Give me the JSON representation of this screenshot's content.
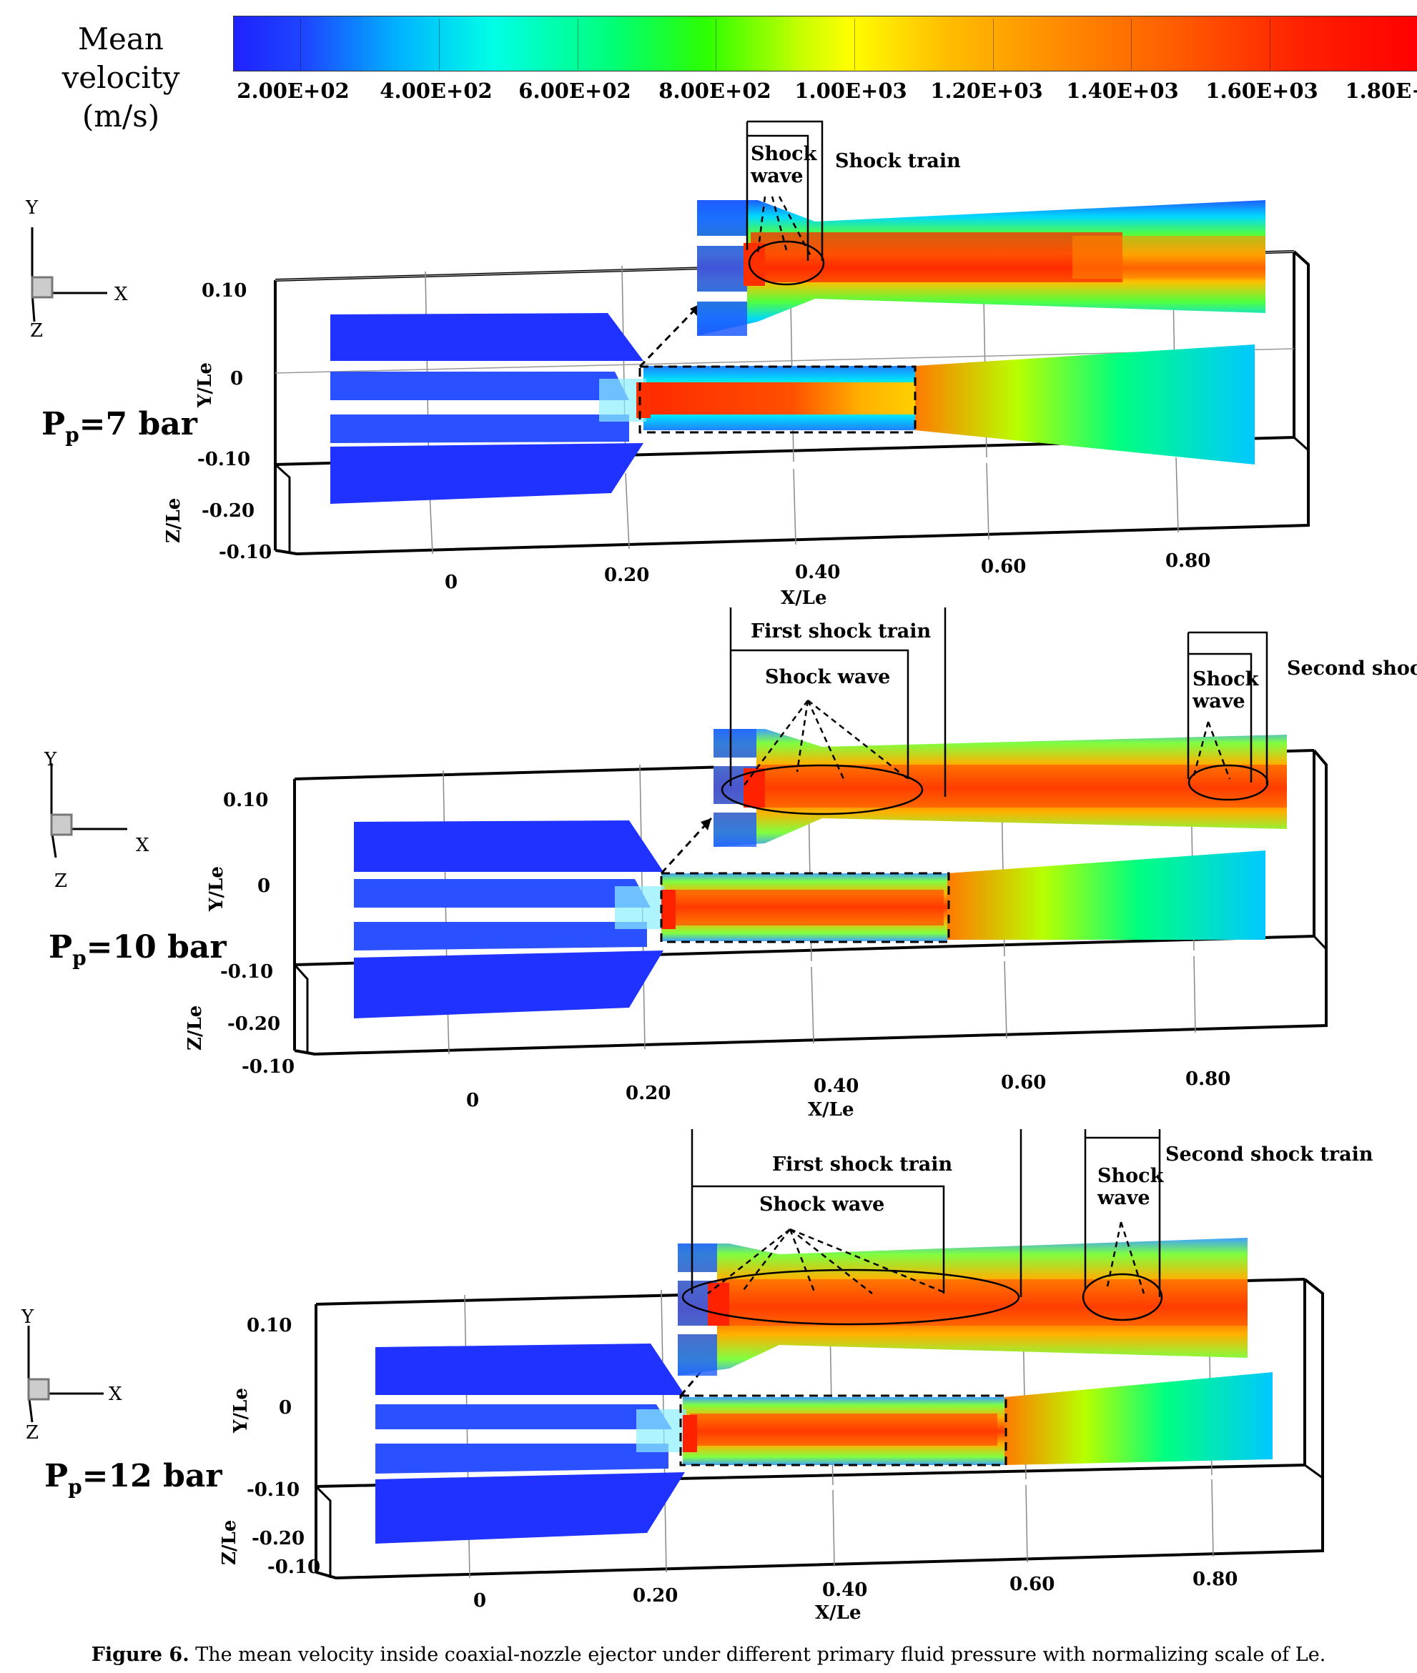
{
  "colorbar": {
    "title_line1": "Mean velocity",
    "title_line2": "(m/s)",
    "ticks": [
      "2.00E+02",
      "4.00E+02",
      "6.00E+02",
      "8.00E+02",
      "1.00E+03",
      "1.20E+03",
      "1.40E+03",
      "1.60E+03",
      "1.80E+"
    ]
  },
  "panels": [
    {
      "pressure_main": "P",
      "pressure_sub": "p",
      "pressure_value": "=7 bar",
      "y_ticks": [
        "0.10",
        "0",
        "-0.10"
      ],
      "z_ticks": [
        "-0.20",
        "-0.10"
      ],
      "x_ticks": [
        "0",
        "0.20",
        "0.40",
        "0.60",
        "0.80"
      ],
      "y_axis_label": "Y/Le",
      "z_axis_label": "Z/Le",
      "x_axis_label": "X/Le",
      "triad": {
        "y": "Y",
        "x": "X",
        "z": "Z"
      },
      "annotations": {
        "train": "Shock train",
        "wave_line1": "Shock",
        "wave_line2": "wave"
      }
    },
    {
      "pressure_main": "P",
      "pressure_sub": "p",
      "pressure_value": "=10 bar",
      "y_ticks": [
        "0.10",
        "0",
        "-0.10"
      ],
      "z_ticks": [
        "-0.20",
        "-0.10"
      ],
      "x_ticks": [
        "0",
        "0.20",
        "0.40",
        "0.60",
        "0.80"
      ],
      "y_axis_label": "Y/Le",
      "z_axis_label": "Z/Le",
      "x_axis_label": "X/Le",
      "triad": {
        "y": "Y",
        "x": "X",
        "z": "Z"
      },
      "annotations": {
        "first_train": "First shock  train",
        "first_wave": "Shock  wave",
        "second_train": "Second shock",
        "second_wave_line1": "Shock",
        "second_wave_line2": "wave"
      }
    },
    {
      "pressure_main": "P",
      "pressure_sub": "p",
      "pressure_value": "=12 bar",
      "y_ticks": [
        "0.10",
        "0",
        "-0.10"
      ],
      "z_ticks": [
        "-0.20",
        "-0.10"
      ],
      "x_ticks": [
        "0",
        "0.20",
        "0.40",
        "0.60",
        "0.80"
      ],
      "y_axis_label": "Y/Le",
      "z_axis_label": "Z/Le",
      "x_axis_label": "X/Le",
      "triad": {
        "y": "Y",
        "x": "X",
        "z": "Z"
      },
      "annotations": {
        "first_train": "First shock  train",
        "first_wave": "Shock  wave",
        "second_train": "Second shock  train",
        "second_wave_line1": "Shock",
        "second_wave_line2": "wave"
      }
    }
  ],
  "caption": {
    "label": "Figure 6.",
    "text": "The mean velocity inside coaxial-nozzle ejector under different primary fluid pressure with normalizing scale of Le."
  }
}
